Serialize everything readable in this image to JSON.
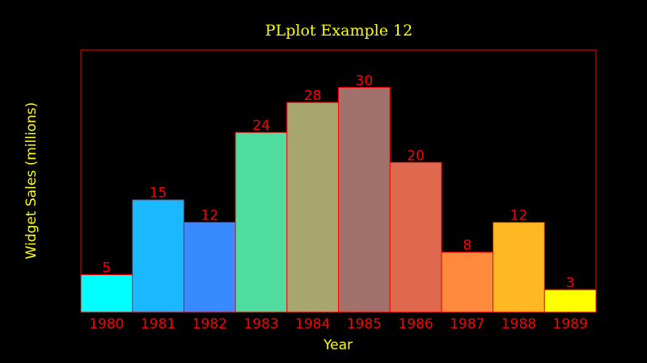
{
  "chart_data": {
    "type": "bar",
    "title": "PLplot Example 12",
    "xlabel": "Year",
    "ylabel": "Widget Sales (millions)",
    "categories": [
      "1980",
      "1981",
      "1982",
      "1983",
      "1984",
      "1985",
      "1986",
      "1987",
      "1988",
      "1989"
    ],
    "values": [
      5,
      15,
      12,
      24,
      28,
      30,
      20,
      8,
      12,
      3
    ],
    "value_labels": [
      "5",
      "15",
      "12",
      "24",
      "28",
      "30",
      "20",
      "8",
      "12",
      "3"
    ],
    "ylim": [
      0,
      35
    ],
    "grid": false,
    "legend": "none",
    "colors": {
      "background": "#000000",
      "frame": "#ff0000",
      "title": "#ffff00",
      "axis_labels": "#ffff00",
      "tick_labels": "#ff0000",
      "value_labels": "#ff0000",
      "bar_outline": "#ff0000",
      "bars": [
        "#00ffff",
        "#1ab8ff",
        "#3a8aff",
        "#4fdc9e",
        "#a6a66e",
        "#a3716c",
        "#e0684f",
        "#ff8a3d",
        "#ffb722",
        "#ffff00"
      ]
    }
  }
}
